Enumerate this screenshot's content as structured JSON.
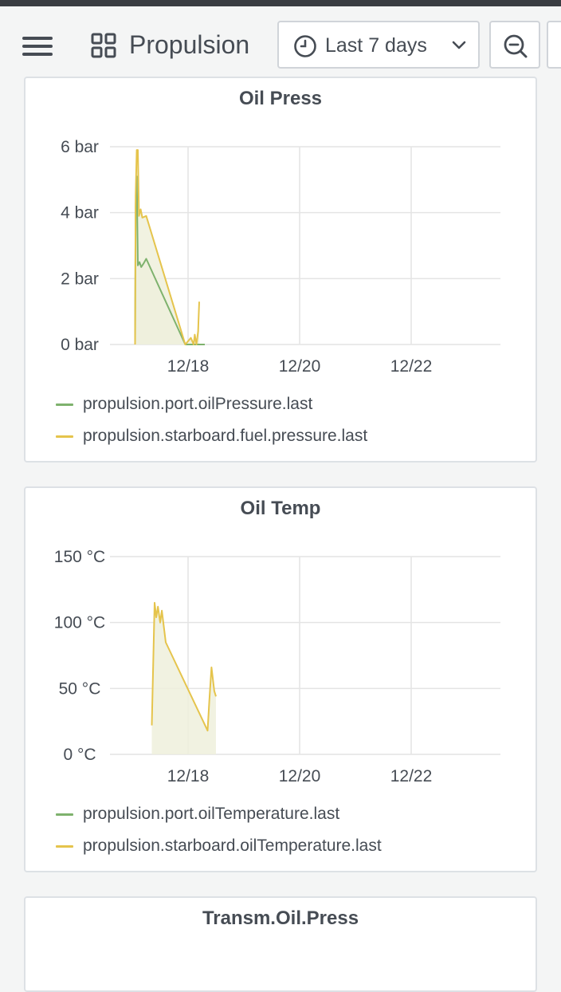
{
  "header": {
    "dashboard_title": "Propulsion",
    "time_range_label": "Last 7 days"
  },
  "icons": {
    "menu": "hamburger-icon",
    "dashboard": "grid-icon",
    "clock": "clock-icon",
    "dropdown": "chevron-down-icon",
    "zoom_out": "zoom-out-icon"
  },
  "colors": {
    "port_series": "#7eb26d",
    "starboard_series": "#e5c44c",
    "fill": "#eef0dc",
    "grid": "#e4e4e4"
  },
  "panels": [
    {
      "title": "Oil Press",
      "legend": [
        {
          "name": "propulsion.port.oilPressure.last",
          "color": "#7eb26d"
        },
        {
          "name": "propulsion.starboard.fuel.pressure.last",
          "color": "#e5c44c"
        }
      ]
    },
    {
      "title": "Oil Temp",
      "legend": [
        {
          "name": "propulsion.port.oilTemperature.last",
          "color": "#7eb26d"
        },
        {
          "name": "propulsion.starboard.oilTemperature.last",
          "color": "#e5c44c"
        }
      ]
    },
    {
      "title": "Transm.Oil.Press"
    }
  ],
  "chart_data": [
    {
      "type": "line",
      "title": "Oil Press",
      "ylim": [
        0,
        6
      ],
      "xlim": [
        16.6,
        23.6
      ],
      "yticks": [
        "0 bar",
        "2 bar",
        "4 bar",
        "6 bar"
      ],
      "ytick_values": [
        0,
        2,
        4,
        6
      ],
      "xticks": [
        "12/18",
        "12/20",
        "12/22"
      ],
      "xtick_values": [
        18,
        20,
        22
      ],
      "grid": true,
      "legend_position": "bottom",
      "series": [
        {
          "name": "propulsion.port.oilPressure.last",
          "color": "#7eb26d",
          "points": [
            [
              17.05,
              0
            ],
            [
              17.06,
              4.2
            ],
            [
              17.08,
              5.1
            ],
            [
              17.1,
              2.4
            ],
            [
              17.13,
              2.5
            ],
            [
              17.16,
              2.35
            ],
            [
              17.2,
              2.45
            ],
            [
              17.25,
              2.6
            ],
            [
              17.95,
              0
            ],
            [
              18.3,
              0
            ]
          ]
        },
        {
          "name": "propulsion.starboard.fuel.pressure.last",
          "color": "#e5c44c",
          "points": [
            [
              17.05,
              0
            ],
            [
              17.06,
              4.5
            ],
            [
              17.08,
              5.9
            ],
            [
              17.1,
              5.9
            ],
            [
              17.12,
              3.9
            ],
            [
              17.15,
              4.1
            ],
            [
              17.18,
              3.85
            ],
            [
              17.25,
              3.9
            ],
            [
              17.95,
              0
            ],
            [
              18.05,
              0.2
            ],
            [
              18.1,
              0
            ],
            [
              18.12,
              0.3
            ],
            [
              18.15,
              0
            ],
            [
              18.18,
              0.4
            ],
            [
              18.2,
              1.3
            ]
          ]
        }
      ]
    },
    {
      "type": "line",
      "title": "Oil Temp",
      "ylim": [
        0,
        150
      ],
      "xlim": [
        16.6,
        23.6
      ],
      "yticks": [
        "0 °C",
        "50 °C",
        "100 °C",
        "150 °C"
      ],
      "ytick_values": [
        0,
        50,
        100,
        150
      ],
      "xticks": [
        "12/18",
        "12/20",
        "12/22"
      ],
      "xtick_values": [
        18,
        20,
        22
      ],
      "grid": true,
      "legend_position": "bottom",
      "series": [
        {
          "name": "propulsion.port.oilTemperature.last",
          "color": "#7eb26d",
          "points": []
        },
        {
          "name": "propulsion.starboard.oilTemperature.last",
          "color": "#e5c44c",
          "points": [
            [
              17.35,
              22
            ],
            [
              17.4,
              115
            ],
            [
              17.43,
              104
            ],
            [
              17.46,
              112
            ],
            [
              17.5,
              100
            ],
            [
              17.53,
              109
            ],
            [
              17.6,
              85
            ],
            [
              18.35,
              18
            ],
            [
              18.38,
              40
            ],
            [
              18.42,
              66
            ],
            [
              18.47,
              48
            ],
            [
              18.5,
              44
            ]
          ]
        }
      ]
    }
  ]
}
